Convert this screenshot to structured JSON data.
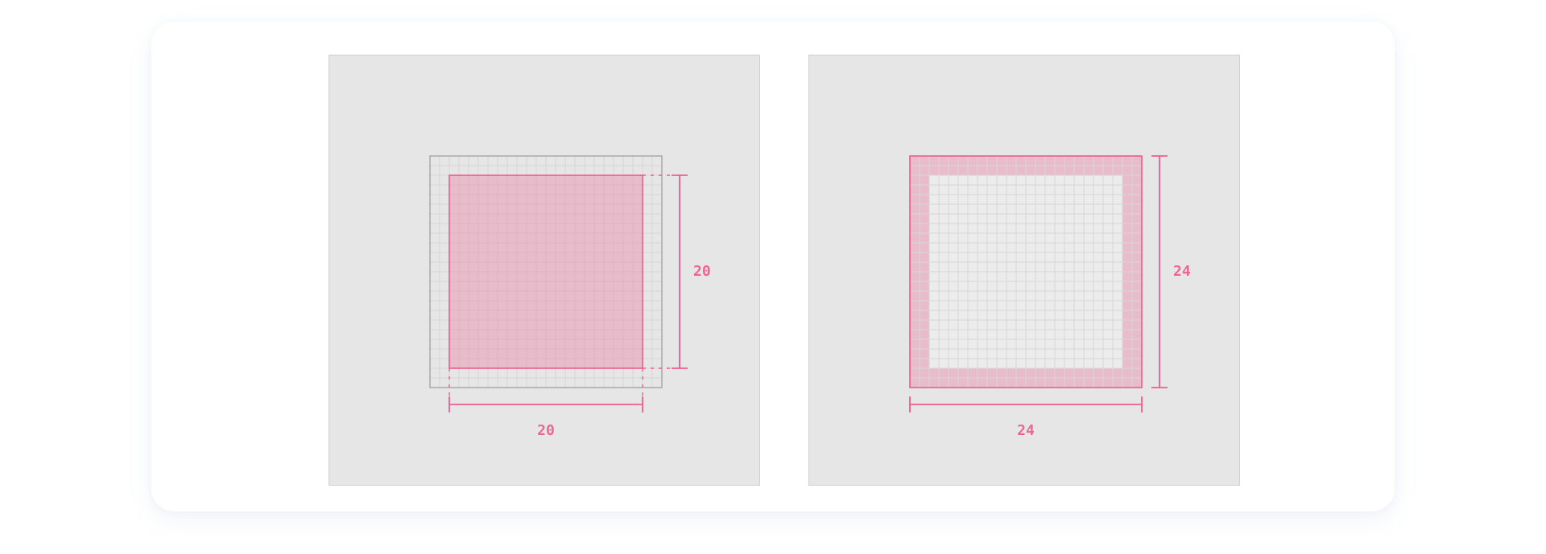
{
  "colors": {
    "accent": "#ee5c8c",
    "accent_fill": "#f1bfd1",
    "panel_bg": "#e6e6e6",
    "grid_line": "#d6d6d6"
  },
  "panels": [
    {
      "grid_cells": 24,
      "shape_cells": 20,
      "width_label": "20",
      "height_label": "20"
    },
    {
      "grid_cells": 24,
      "shape_cells": 24,
      "padding_cells": 2,
      "width_label": "24",
      "height_label": "24"
    }
  ]
}
